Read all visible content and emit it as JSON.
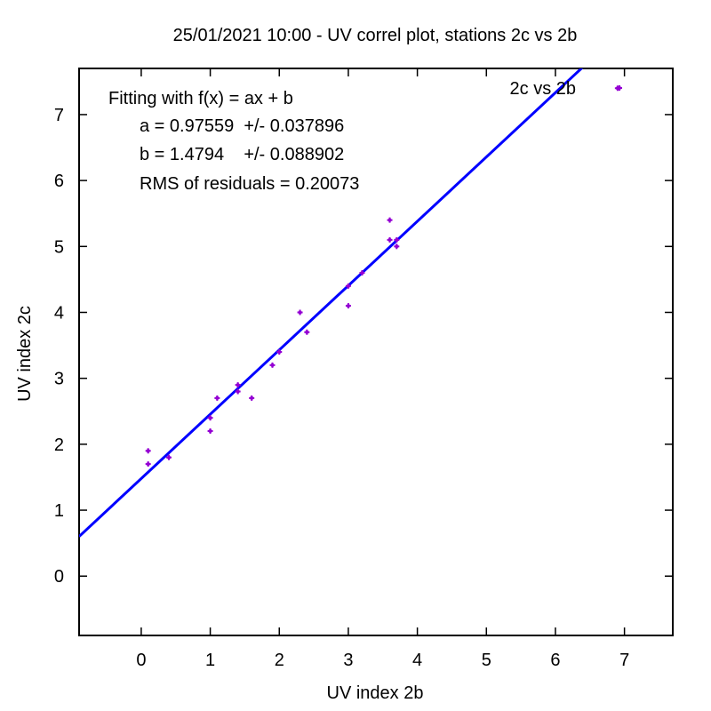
{
  "chart_data": {
    "type": "scatter",
    "title": "25/01/2021 10:00 - UV correl plot, stations 2c vs 2b",
    "xlabel": "UV index 2b",
    "ylabel": "UV index 2c",
    "xlim": [
      -0.9,
      7.7
    ],
    "ylim": [
      -0.9,
      7.7
    ],
    "xticks": [
      0,
      1,
      2,
      3,
      4,
      5,
      6,
      7
    ],
    "yticks": [
      0,
      1,
      2,
      3,
      4,
      5,
      6,
      7
    ],
    "xtick_labels": [
      "0",
      "1",
      "2",
      "3",
      "4",
      "5",
      "6",
      "7"
    ],
    "ytick_labels": [
      "0",
      "1",
      "2",
      "3",
      "4",
      "5",
      "6",
      "7"
    ],
    "grid": false,
    "legend_position": "top-right",
    "series": [
      {
        "name": "2c vs 2b",
        "type": "scatter",
        "color": "#9400d3",
        "points": [
          {
            "x": 0.1,
            "y": 1.9
          },
          {
            "x": 0.1,
            "y": 1.7
          },
          {
            "x": 0.4,
            "y": 1.8
          },
          {
            "x": 1.0,
            "y": 2.4
          },
          {
            "x": 1.0,
            "y": 2.2
          },
          {
            "x": 1.1,
            "y": 2.7
          },
          {
            "x": 1.4,
            "y": 2.9
          },
          {
            "x": 1.4,
            "y": 2.8
          },
          {
            "x": 1.6,
            "y": 2.7
          },
          {
            "x": 1.9,
            "y": 3.2
          },
          {
            "x": 2.0,
            "y": 3.4
          },
          {
            "x": 2.3,
            "y": 4.0
          },
          {
            "x": 2.4,
            "y": 3.7
          },
          {
            "x": 3.0,
            "y": 4.1
          },
          {
            "x": 3.0,
            "y": 4.4
          },
          {
            "x": 3.2,
            "y": 4.6
          },
          {
            "x": 3.6,
            "y": 5.4
          },
          {
            "x": 3.6,
            "y": 5.1
          },
          {
            "x": 3.7,
            "y": 5.0
          },
          {
            "x": 3.7,
            "y": 5.1
          },
          {
            "x": 6.9,
            "y": 7.4
          }
        ]
      }
    ],
    "fit": {
      "a": 0.97559,
      "b": 1.4794,
      "color": "#0000ff",
      "lines": [
        "Fitting with f(x) = ax + b",
        "a = 0.97559  +/- 0.037896",
        "b = 1.4794    +/- 0.088902",
        "RMS of residuals = 0.20073"
      ]
    }
  }
}
